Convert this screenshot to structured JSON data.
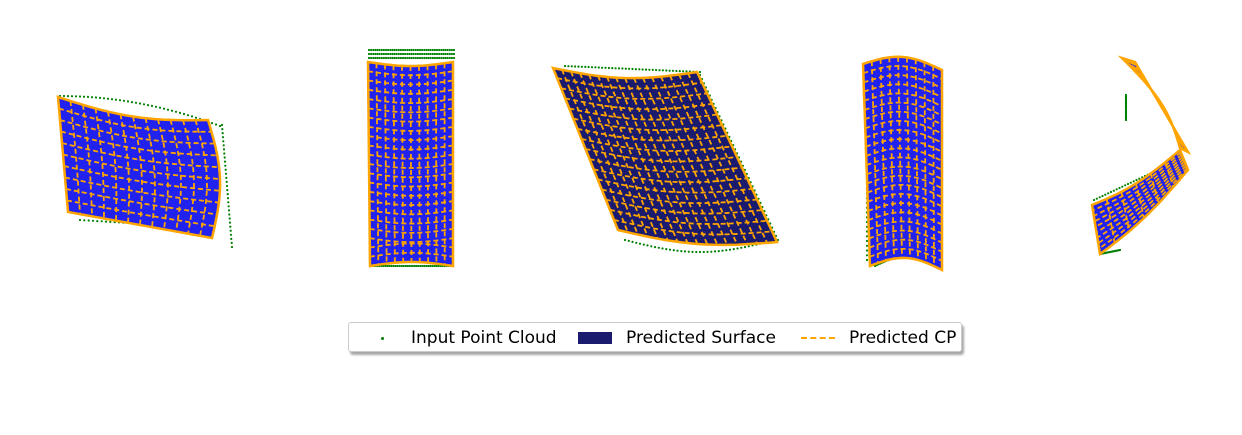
{
  "colors": {
    "input_point_cloud": "#008000",
    "predicted_surface": "#1a1a6e",
    "predicted_surface_light": "#2222ee",
    "predicted_cp": "#ffa500"
  },
  "legend": {
    "items": [
      {
        "label": "Input Point Cloud",
        "marker": "dot"
      },
      {
        "label": "Predicted Surface",
        "marker": "rect"
      },
      {
        "label": "Predicted CP",
        "marker": "dashed-line"
      }
    ]
  },
  "panels": [
    {
      "id": "panel-1",
      "shape": "curved-patch"
    },
    {
      "id": "panel-2",
      "shape": "rectangle"
    },
    {
      "id": "panel-3",
      "shape": "skewed-sheet"
    },
    {
      "id": "panel-4",
      "shape": "bent-strip"
    },
    {
      "id": "panel-5",
      "shape": "twisted-strip"
    }
  ]
}
